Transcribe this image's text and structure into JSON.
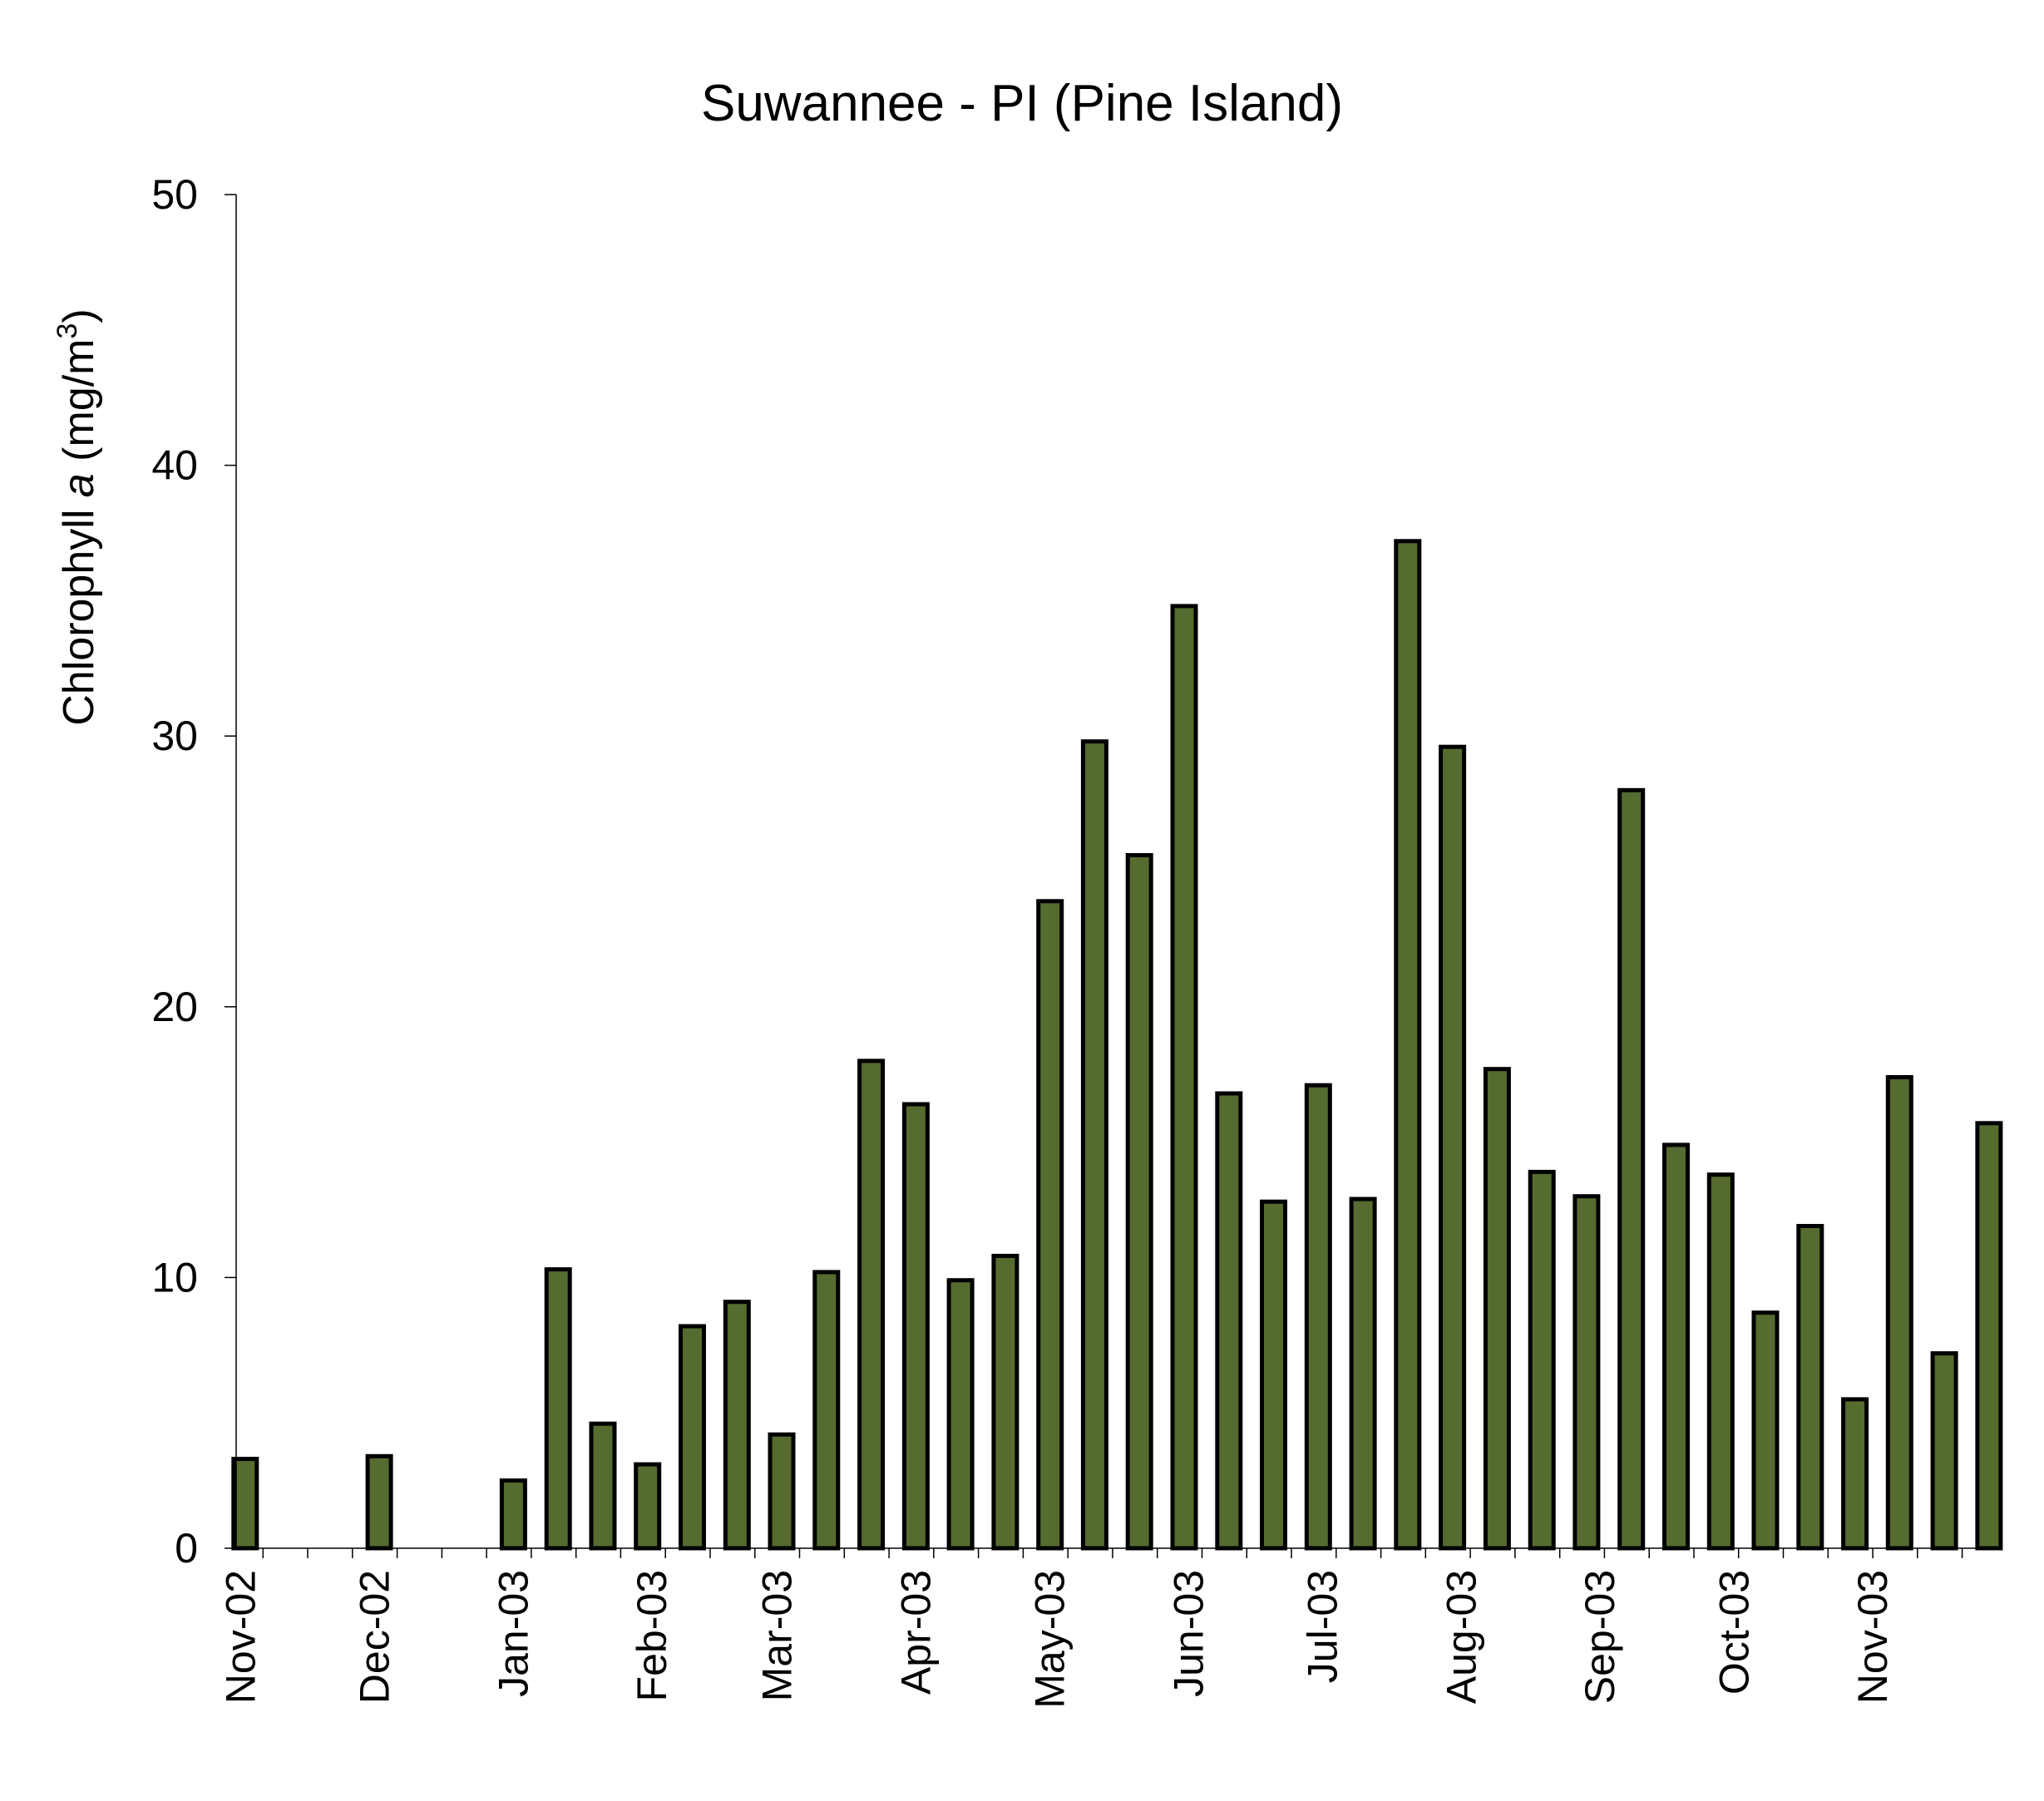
{
  "chart_data": {
    "type": "bar",
    "title": "Suwannee - PI (Pine Island)",
    "ylabel_parts": [
      "Chlorophyll ",
      "a",
      " (mg/m",
      "3",
      ")"
    ],
    "xlabel": "",
    "ylim": [
      0,
      50
    ],
    "yticks": [
      0,
      10,
      20,
      30,
      40,
      50
    ],
    "grid": false,
    "bar_color": "#556b2f",
    "bar_edge_color": "#000000",
    "x_axis_type": "date",
    "xlim": [
      "2002-10-31",
      "2003-11-30"
    ],
    "xtick_labels": [
      {
        "date": "2002-11-01",
        "label": "Nov-02"
      },
      {
        "date": "2002-12-01",
        "label": "Dec-02"
      },
      {
        "date": "2003-01-01",
        "label": "Jan-03"
      },
      {
        "date": "2003-02-01",
        "label": "Feb-03"
      },
      {
        "date": "2003-03-01",
        "label": "Mar-03"
      },
      {
        "date": "2003-04-01",
        "label": "Apr-03"
      },
      {
        "date": "2003-05-01",
        "label": "May-03"
      },
      {
        "date": "2003-06-01",
        "label": "Jun-03"
      },
      {
        "date": "2003-07-01",
        "label": "Jul-03"
      },
      {
        "date": "2003-08-01",
        "label": "Aug-03"
      },
      {
        "date": "2003-09-01",
        "label": "Sep-03"
      },
      {
        "date": "2003-10-01",
        "label": "Oct-03"
      },
      {
        "date": "2003-11-01",
        "label": "Nov-03"
      }
    ],
    "bars": [
      {
        "date": "2002-11-02",
        "value": 3.3
      },
      {
        "date": "2002-12-02",
        "value": 3.4
      },
      {
        "date": "2003-01-01",
        "value": 2.5
      },
      {
        "date": "2003-01-11",
        "value": 10.3
      },
      {
        "date": "2003-01-21",
        "value": 4.6
      },
      {
        "date": "2003-01-31",
        "value": 3.1
      },
      {
        "date": "2003-02-10",
        "value": 8.2
      },
      {
        "date": "2003-02-20",
        "value": 9.1
      },
      {
        "date": "2003-03-02",
        "value": 4.2
      },
      {
        "date": "2003-03-12",
        "value": 10.2
      },
      {
        "date": "2003-03-22",
        "value": 18.0
      },
      {
        "date": "2003-04-01",
        "value": 16.4
      },
      {
        "date": "2003-04-11",
        "value": 9.9
      },
      {
        "date": "2003-04-21",
        "value": 10.8
      },
      {
        "date": "2003-05-01",
        "value": 23.9
      },
      {
        "date": "2003-05-11",
        "value": 29.8
      },
      {
        "date": "2003-05-21",
        "value": 25.6
      },
      {
        "date": "2003-05-31",
        "value": 34.8
      },
      {
        "date": "2003-06-10",
        "value": 16.8
      },
      {
        "date": "2003-06-20",
        "value": 12.8
      },
      {
        "date": "2003-06-30",
        "value": 17.1
      },
      {
        "date": "2003-07-10",
        "value": 12.9
      },
      {
        "date": "2003-07-20",
        "value": 37.2
      },
      {
        "date": "2003-07-30",
        "value": 29.6
      },
      {
        "date": "2003-08-09",
        "value": 17.7
      },
      {
        "date": "2003-08-19",
        "value": 13.9
      },
      {
        "date": "2003-08-29",
        "value": 13.0
      },
      {
        "date": "2003-09-08",
        "value": 28.0
      },
      {
        "date": "2003-09-18",
        "value": 14.9
      },
      {
        "date": "2003-09-28",
        "value": 13.8
      },
      {
        "date": "2003-10-08",
        "value": 8.7
      },
      {
        "date": "2003-10-18",
        "value": 11.9
      },
      {
        "date": "2003-10-28",
        "value": 5.5
      },
      {
        "date": "2003-11-07",
        "value": 17.4
      },
      {
        "date": "2003-11-17",
        "value": 7.2
      },
      {
        "date": "2003-11-27",
        "value": 15.7
      }
    ]
  }
}
